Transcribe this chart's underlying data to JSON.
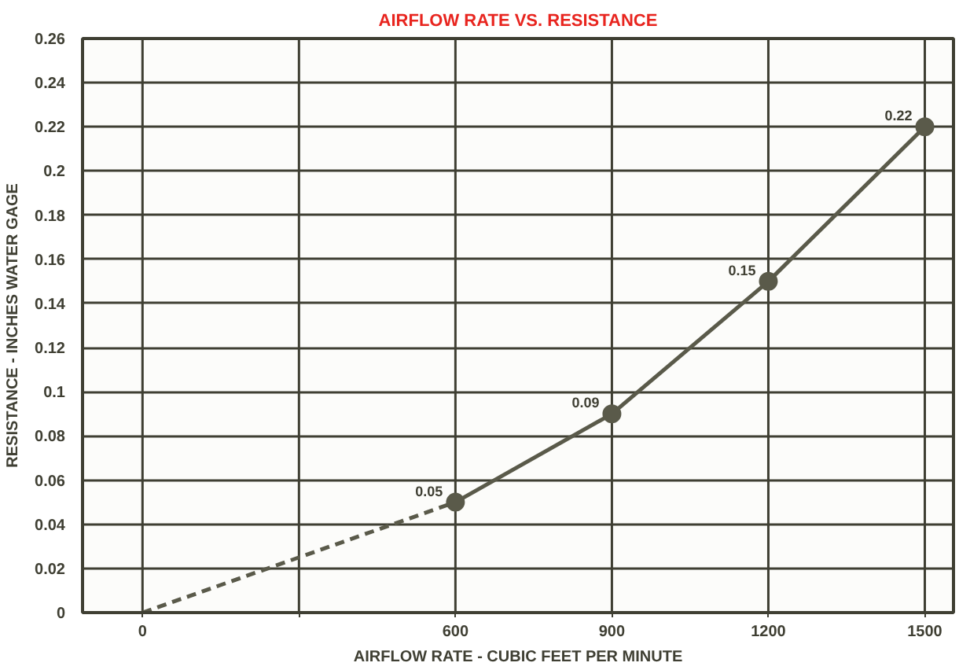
{
  "chart_data": {
    "type": "line",
    "title": "AIRFLOW RATE VS. RESISTANCE",
    "xlabel": "AIRFLOW RATE - CUBIC FEET PER MINUTE",
    "ylabel": "RESISTANCE - INCHES WATER GAGE",
    "xlim": [
      -115,
      1555
    ],
    "xticks": [
      0,
      {
        "value": 300,
        "label": null
      },
      600,
      900,
      1200,
      1500
    ],
    "ylim": [
      0,
      0.26
    ],
    "yticks": [
      0,
      0.02,
      0.04,
      0.06,
      0.08,
      0.1,
      0.12,
      0.14,
      0.16,
      0.18,
      0.2,
      0.22,
      0.24,
      0.26
    ],
    "grid": true,
    "series": [
      {
        "color": "#5a5a4a",
        "x": [
          0,
          600
        ],
        "values": [
          0,
          0.05
        ],
        "line_style": "dashed"
      },
      {
        "color": "#5a5a4a",
        "x": [
          600,
          900,
          1200,
          1500
        ],
        "values": [
          0.05,
          0.09,
          0.15,
          0.22
        ],
        "line_style": "solid",
        "marker": "circle",
        "value_labels": [
          "0.05",
          "0.09",
          "0.15",
          "0.22"
        ]
      }
    ]
  }
}
